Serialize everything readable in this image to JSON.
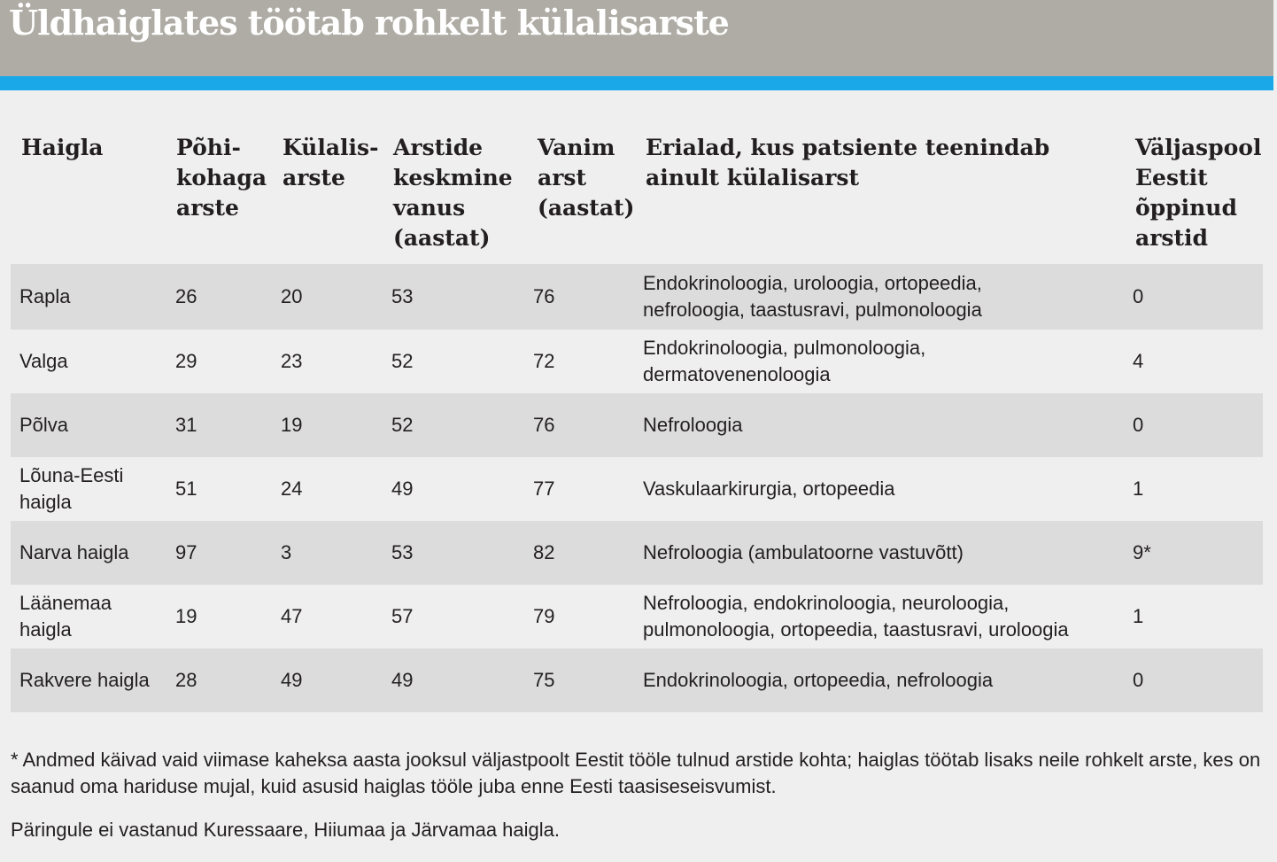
{
  "title": "Üldhaiglates töötab rohkelt külalisarste",
  "colors": {
    "header_bg": "#aeaca4",
    "accent": "#1ba8e8",
    "row_shade": "#dcdcdc",
    "page_bg": "#efefef"
  },
  "table": {
    "headers": [
      "Haigla",
      "Põhi-\nkohaga\narste",
      "Külalis-\narste",
      "Arstide\nkeskmine\nvanus\n(aastat)",
      "Vanim\narst\n(aastat)",
      "Erialad, kus patsiente teenindab\nainult külalisarst",
      "Väljaspool\nEestit\nõppinud\narstid"
    ],
    "rows": [
      [
        "Rapla",
        "26",
        "20",
        "53",
        "76",
        "Endokrinoloogia, uroloogia, ortopeedia,\nnefroloogia, taastusravi, pulmonoloogia",
        "0"
      ],
      [
        "Valga",
        "29",
        "23",
        "52",
        "72",
        "Endokrinoloogia, pulmonoloogia,\ndermatovenenoloogia",
        "4"
      ],
      [
        "Põlva",
        "31",
        "19",
        "52",
        "76",
        "Nefroloogia",
        "0"
      ],
      [
        "Lõuna-Eesti\nhaigla",
        "51",
        "24",
        "49",
        "77",
        "Vaskulaarkirurgia, ortopeedia",
        "1"
      ],
      [
        "Narva haigla",
        "97",
        "3",
        "53",
        "82",
        "Nefroloogia (ambulatoorne vastuvõtt)",
        "9*"
      ],
      [
        "Läänemaa\nhaigla",
        "19",
        "47",
        "57",
        "79",
        "Nefroloogia, endokrinoloogia, neuroloogia,\npulmonoloogia, ortopeedia, taastusravi, uroloogia",
        "1"
      ],
      [
        "Rakvere haigla",
        "28",
        "49",
        "49",
        "75",
        "Endokrinoloogia, ortopeedia, nefroloogia",
        "0"
      ]
    ]
  },
  "footnote": "* Andmed käivad vaid viimase kaheksa aasta jooksul väljastpoolt Eestit tööle tulnud arstide kohta; haiglas töötab lisaks neile rohkelt arste, kes on saanud oma hariduse mujal, kuid asusid haiglas tööle juba enne Eesti taasiseseisvumist.",
  "source_note": "Päringule ei vastanud Kuressaare, Hiiumaa ja Järvamaa haigla."
}
